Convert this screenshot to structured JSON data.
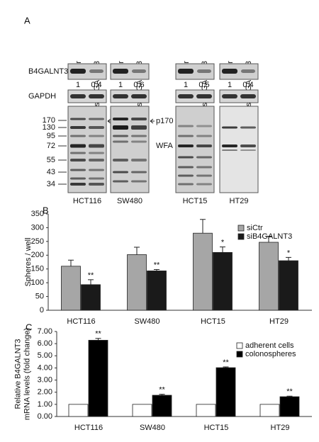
{
  "panel_a": {
    "label": "A",
    "lanes": [
      "siCtr",
      "siB4GALNT3"
    ],
    "rows": [
      "B4GALNT3",
      "GAPDH"
    ],
    "blots": [
      {
        "cell_line": "HCT116",
        "quant": [
          1,
          0.4
        ]
      },
      {
        "cell_line": "SW480",
        "quant": [
          1,
          0.6
        ]
      },
      {
        "cell_line": "HCT15",
        "quant": [
          1,
          0.5
        ]
      },
      {
        "cell_line": "HT29",
        "quant": [
          1,
          0.4
        ]
      }
    ],
    "markers": [
      "170",
      "130",
      "95",
      "72",
      "55",
      "43",
      "34"
    ],
    "annotations": [
      "p170",
      "WFA"
    ]
  },
  "chart_data": [
    {
      "type": "bar",
      "panel": "B",
      "ylabel": [
        "Spheres / well"
      ],
      "categories": [
        "HCT116",
        "SW480",
        "HCT15",
        "HT29"
      ],
      "series": [
        {
          "name": "siCtr",
          "color": "#a6a6a6",
          "values": [
            160,
            202,
            280,
            247
          ],
          "errors": [
            22,
            27,
            50,
            22
          ]
        },
        {
          "name": "siB4GALNT3",
          "color": "#1a1a1a",
          "values": [
            93,
            143,
            210,
            180
          ],
          "errors": [
            18,
            5,
            20,
            12
          ],
          "sig_labels": [
            "**",
            "**",
            "*",
            "*"
          ]
        }
      ],
      "ylim": [
        0,
        350
      ],
      "yticks": [
        0,
        50,
        100,
        150,
        200,
        250,
        300,
        350
      ],
      "legend": "upper right"
    },
    {
      "type": "bar",
      "panel": "C",
      "ylabel": [
        "Relative B4GALNT3",
        "mRNA levels (fold change)"
      ],
      "categories": [
        "HCT116",
        "SW480",
        "HCT15",
        "HT29"
      ],
      "series": [
        {
          "name": "adherent cells",
          "color": "#ffffff",
          "values": [
            1,
            1,
            1,
            1
          ]
        },
        {
          "name": "colonospheres",
          "color": "#000000",
          "values": [
            6.28,
            1.75,
            4.02,
            1.63
          ],
          "errors": [
            0.15,
            0.08,
            0.06,
            0.05
          ],
          "sig_labels": [
            "**",
            "**",
            "**",
            "**"
          ]
        }
      ],
      "ylim": [
        0,
        7
      ],
      "yticks": [
        {
          "value": 0,
          "label": "0.00"
        },
        {
          "value": 1,
          "label": "1.00"
        },
        {
          "value": 2,
          "label": "2.00"
        },
        {
          "value": 3,
          "label": "3.00"
        },
        {
          "value": 4,
          "label": "4.00"
        },
        {
          "value": 5,
          "label": "5.00"
        },
        {
          "value": 6,
          "label": "6.00"
        },
        {
          "value": 7,
          "label": "7.00"
        }
      ],
      "legend": "upper right"
    }
  ]
}
